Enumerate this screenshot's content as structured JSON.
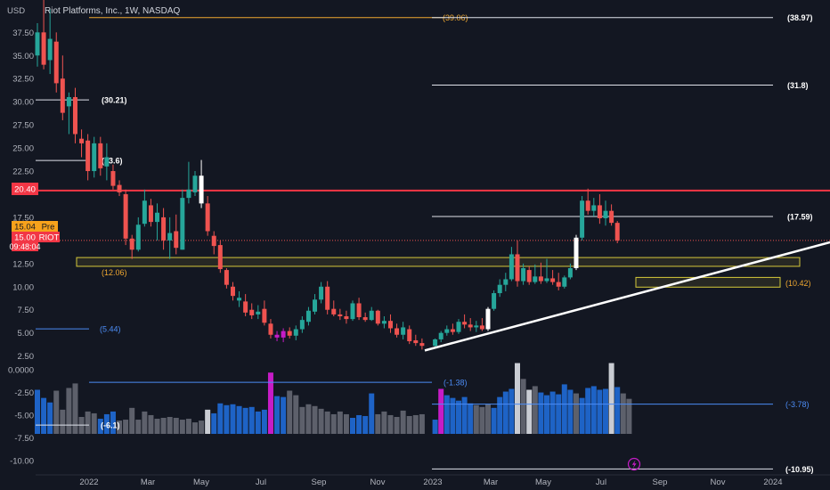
{
  "header": {
    "currency": "USD",
    "title": "Riot Platforms, Inc., 1W, NASDAQ"
  },
  "badges": {
    "resistance_price": "20.40",
    "pre_price": "15.04",
    "pre_label": "Pre",
    "last_price": "15.00",
    "ticker": "RIOT",
    "countdown": "09:48:04"
  },
  "colors": {
    "background": "#131722",
    "up": "#26a69a",
    "down": "#ef5350",
    "resistance": "#f23645",
    "zone_border": "#d6c93a",
    "volume_blue": "#1e63c6",
    "volume_gray": "#5d606b",
    "volume_white": "#c9ccd3",
    "volume_magenta": "#c61cc7",
    "level_blue": "#4c8cf5",
    "level_orange": "#f0a830"
  },
  "chart_data": [
    {
      "type": "candlestick",
      "title": "Riot Platforms, Inc., 1W, NASDAQ",
      "currency": "USD",
      "x_tick_labels": [
        "2022",
        "Mar",
        "May",
        "Jul",
        "Sep",
        "Nov",
        "2023",
        "Mar",
        "May",
        "Jul",
        "Sep",
        "Nov",
        "2024"
      ],
      "y_tick_labels": [
        "37.50",
        "35.00",
        "32.50",
        "30.00",
        "27.50",
        "25.00",
        "22.50",
        "17.50",
        "12.50",
        "10.00",
        "7.50",
        "5.00",
        "2.50"
      ],
      "y_range": [
        1.5,
        40
      ],
      "grid": false,
      "candles": [
        {
          "o": 35.0,
          "h": 38.5,
          "l": 33.8,
          "c": 37.5
        },
        {
          "o": 37.5,
          "h": 41.0,
          "l": 33.5,
          "c": 34.0
        },
        {
          "o": 34.5,
          "h": 40.0,
          "l": 33.0,
          "c": 36.8
        },
        {
          "o": 36.5,
          "h": 37.5,
          "l": 31.0,
          "c": 32.0
        },
        {
          "o": 32.5,
          "h": 35.0,
          "l": 28.0,
          "c": 28.8
        },
        {
          "o": 29.5,
          "h": 31.0,
          "l": 26.5,
          "c": 30.5
        },
        {
          "o": 30.5,
          "h": 31.5,
          "l": 25.5,
          "c": 26.5
        },
        {
          "o": 26.0,
          "h": 27.0,
          "l": 24.0,
          "c": 25.5
        },
        {
          "o": 25.8,
          "h": 26.5,
          "l": 21.5,
          "c": 22.5
        },
        {
          "o": 22.5,
          "h": 26.2,
          "l": 21.8,
          "c": 25.5
        },
        {
          "o": 25.5,
          "h": 26.2,
          "l": 22.0,
          "c": 22.8
        },
        {
          "o": 23.0,
          "h": 25.5,
          "l": 21.5,
          "c": 24.0
        },
        {
          "o": 22.5,
          "h": 23.2,
          "l": 20.5,
          "c": 20.9
        },
        {
          "o": 21.0,
          "h": 21.5,
          "l": 19.8,
          "c": 20.2
        },
        {
          "o": 20.0,
          "h": 20.5,
          "l": 14.5,
          "c": 15.2
        },
        {
          "o": 15.2,
          "h": 15.6,
          "l": 13.0,
          "c": 14.0
        },
        {
          "o": 14.0,
          "h": 17.5,
          "l": 13.8,
          "c": 16.7
        },
        {
          "o": 16.8,
          "h": 20.5,
          "l": 16.5,
          "c": 19.3
        },
        {
          "o": 18.8,
          "h": 19.5,
          "l": 16.5,
          "c": 17.0
        },
        {
          "o": 17.0,
          "h": 19.0,
          "l": 15.0,
          "c": 18.0
        },
        {
          "o": 17.5,
          "h": 18.5,
          "l": 14.0,
          "c": 15.0
        },
        {
          "o": 15.0,
          "h": 17.5,
          "l": 13.0,
          "c": 15.8
        },
        {
          "o": 16.0,
          "h": 17.8,
          "l": 13.5,
          "c": 14.2
        },
        {
          "o": 14.0,
          "h": 20.5,
          "l": 14.0,
          "c": 19.6
        },
        {
          "o": 19.6,
          "h": 23.5,
          "l": 19.0,
          "c": 20.5
        },
        {
          "o": 20.2,
          "h": 22.5,
          "l": 19.8,
          "c": 22.0
        },
        {
          "o": 22.0,
          "h": 23.7,
          "l": 18.5,
          "c": 19.0
        },
        {
          "o": 19.0,
          "h": 19.8,
          "l": 15.5,
          "c": 16.0
        },
        {
          "o": 15.5,
          "h": 16.0,
          "l": 13.5,
          "c": 14.4
        },
        {
          "o": 14.5,
          "h": 15.0,
          "l": 11.5,
          "c": 11.9
        },
        {
          "o": 11.8,
          "h": 12.0,
          "l": 9.8,
          "c": 10.2
        },
        {
          "o": 10.0,
          "h": 10.5,
          "l": 8.5,
          "c": 9.0
        },
        {
          "o": 8.5,
          "h": 9.5,
          "l": 7.8,
          "c": 8.8
        },
        {
          "o": 8.4,
          "h": 9.2,
          "l": 6.8,
          "c": 7.2
        },
        {
          "o": 7.5,
          "h": 8.2,
          "l": 6.5,
          "c": 6.9
        },
        {
          "o": 7.0,
          "h": 8.0,
          "l": 6.5,
          "c": 7.3
        },
        {
          "o": 7.6,
          "h": 8.5,
          "l": 5.8,
          "c": 6.1
        },
        {
          "o": 6.0,
          "h": 6.5,
          "l": 4.4,
          "c": 4.8
        },
        {
          "o": 4.8,
          "h": 5.2,
          "l": 4.1,
          "c": 4.5
        },
        {
          "o": 4.5,
          "h": 5.5,
          "l": 4.0,
          "c": 5.2
        },
        {
          "o": 5.2,
          "h": 5.6,
          "l": 4.4,
          "c": 4.7
        },
        {
          "o": 4.7,
          "h": 5.8,
          "l": 4.2,
          "c": 5.4
        },
        {
          "o": 5.4,
          "h": 6.8,
          "l": 5.0,
          "c": 6.4
        },
        {
          "o": 6.2,
          "h": 7.8,
          "l": 5.8,
          "c": 7.4
        },
        {
          "o": 7.3,
          "h": 9.2,
          "l": 7.0,
          "c": 8.6
        },
        {
          "o": 8.6,
          "h": 10.5,
          "l": 8.2,
          "c": 10.0
        },
        {
          "o": 10.0,
          "h": 10.6,
          "l": 7.0,
          "c": 7.5
        },
        {
          "o": 7.6,
          "h": 8.5,
          "l": 6.8,
          "c": 7.0
        },
        {
          "o": 7.0,
          "h": 7.6,
          "l": 6.4,
          "c": 6.8
        },
        {
          "o": 6.8,
          "h": 7.4,
          "l": 6.0,
          "c": 6.5
        },
        {
          "o": 6.5,
          "h": 8.5,
          "l": 6.3,
          "c": 8.2
        },
        {
          "o": 8.2,
          "h": 8.8,
          "l": 6.4,
          "c": 6.7
        },
        {
          "o": 6.7,
          "h": 7.2,
          "l": 6.2,
          "c": 6.4
        },
        {
          "o": 6.4,
          "h": 7.8,
          "l": 6.3,
          "c": 7.4
        },
        {
          "o": 7.4,
          "h": 7.5,
          "l": 5.8,
          "c": 6.0
        },
        {
          "o": 6.0,
          "h": 6.8,
          "l": 5.5,
          "c": 6.3
        },
        {
          "o": 6.3,
          "h": 7.0,
          "l": 5.0,
          "c": 5.5
        },
        {
          "o": 5.5,
          "h": 6.0,
          "l": 4.5,
          "c": 4.8
        },
        {
          "o": 4.8,
          "h": 6.2,
          "l": 4.3,
          "c": 5.6
        },
        {
          "o": 5.4,
          "h": 5.8,
          "l": 3.8,
          "c": 4.1
        },
        {
          "o": 4.2,
          "h": 4.8,
          "l": 3.6,
          "c": 3.9
        },
        {
          "o": 3.9,
          "h": 4.4,
          "l": 3.2,
          "c": 3.6
        },
        {
          "o": 3.6,
          "h": 4.4,
          "l": 3.3,
          "c": 4.3
        },
        {
          "o": 4.3,
          "h": 5.2,
          "l": 4.0,
          "c": 5.0
        },
        {
          "o": 5.0,
          "h": 5.8,
          "l": 4.7,
          "c": 5.4
        },
        {
          "o": 5.4,
          "h": 6.0,
          "l": 4.8,
          "c": 5.1
        },
        {
          "o": 5.1,
          "h": 6.5,
          "l": 4.9,
          "c": 6.2
        },
        {
          "o": 6.2,
          "h": 7.0,
          "l": 5.5,
          "c": 5.9
        },
        {
          "o": 5.9,
          "h": 6.6,
          "l": 5.2,
          "c": 5.6
        },
        {
          "o": 5.6,
          "h": 6.3,
          "l": 5.1,
          "c": 5.8
        },
        {
          "o": 5.8,
          "h": 6.6,
          "l": 5.2,
          "c": 5.4
        },
        {
          "o": 5.4,
          "h": 7.8,
          "l": 5.2,
          "c": 7.6
        },
        {
          "o": 7.6,
          "h": 9.6,
          "l": 7.4,
          "c": 9.3
        },
        {
          "o": 9.3,
          "h": 10.8,
          "l": 8.9,
          "c": 10.2
        },
        {
          "o": 10.2,
          "h": 11.5,
          "l": 9.5,
          "c": 10.8
        },
        {
          "o": 10.8,
          "h": 14.3,
          "l": 10.6,
          "c": 13.5
        },
        {
          "o": 13.5,
          "h": 15.0,
          "l": 10.0,
          "c": 10.6
        },
        {
          "o": 10.6,
          "h": 12.5,
          "l": 10.2,
          "c": 12.0
        },
        {
          "o": 11.8,
          "h": 12.2,
          "l": 10.2,
          "c": 10.5
        },
        {
          "o": 10.5,
          "h": 12.4,
          "l": 10.3,
          "c": 11.1
        },
        {
          "o": 11.1,
          "h": 12.6,
          "l": 10.3,
          "c": 10.6
        },
        {
          "o": 10.6,
          "h": 13.0,
          "l": 10.4,
          "c": 10.9
        },
        {
          "o": 10.9,
          "h": 11.8,
          "l": 10.2,
          "c": 10.5
        },
        {
          "o": 10.5,
          "h": 11.5,
          "l": 9.6,
          "c": 10.0
        },
        {
          "o": 10.0,
          "h": 11.2,
          "l": 9.8,
          "c": 11.0
        },
        {
          "o": 11.0,
          "h": 12.5,
          "l": 10.8,
          "c": 12.0
        },
        {
          "o": 12.0,
          "h": 15.6,
          "l": 11.8,
          "c": 15.3
        },
        {
          "o": 15.3,
          "h": 19.8,
          "l": 15.0,
          "c": 19.3
        },
        {
          "o": 19.3,
          "h": 20.6,
          "l": 17.8,
          "c": 18.2
        },
        {
          "o": 18.2,
          "h": 19.6,
          "l": 17.6,
          "c": 18.8
        },
        {
          "o": 18.8,
          "h": 20.0,
          "l": 16.8,
          "c": 17.4
        },
        {
          "o": 17.4,
          "h": 19.3,
          "l": 16.6,
          "c": 18.2
        },
        {
          "o": 18.2,
          "h": 18.9,
          "l": 16.6,
          "c": 16.9
        },
        {
          "o": 16.9,
          "h": 17.1,
          "l": 14.7,
          "c": 15.0
        }
      ],
      "levels": [
        {
          "label": "(39.06)",
          "color": "orange"
        },
        {
          "label": "(38.97)",
          "color": "white"
        },
        {
          "label": "(31.8)",
          "color": "white"
        },
        {
          "label": "(30.21)",
          "color": "white"
        },
        {
          "label": "(23.6)",
          "color": "white"
        },
        {
          "label": "(17.59)",
          "color": "white"
        },
        {
          "label": "(12.06)",
          "color": "orange"
        },
        {
          "label": "(10.42)",
          "color": "orange"
        },
        {
          "label": "(5.44)",
          "color": "blue"
        }
      ]
    },
    {
      "type": "bar",
      "y_tick_labels": [
        "0.0000",
        "-2.50",
        "-5.00",
        "-7.50",
        "-10.00"
      ],
      "y_range": [
        -11.5,
        1.0
      ],
      "values": [
        -2.2,
        -3.1,
        -3.6,
        -2.3,
        -4.4,
        -2.0,
        -1.5,
        -5.2,
        -4.6,
        -4.8,
        -5.4,
        -4.9,
        -4.6,
        -5.6,
        -5.5,
        -4.2,
        -5.5,
        -4.6,
        -5.0,
        -5.4,
        -5.3,
        -5.2,
        -5.3,
        -5.5,
        -5.4,
        -5.8,
        -5.6,
        -4.4,
        -4.8,
        -3.7,
        -3.9,
        -3.8,
        -4.0,
        -4.2,
        -4.1,
        -4.6,
        -4.4,
        -0.3,
        -2.9,
        -3.0,
        -2.3,
        -2.8,
        -4.1,
        -3.8,
        -4.0,
        -4.3,
        -4.6,
        -4.9,
        -4.6,
        -4.9,
        -5.3,
        -5.0,
        -5.1,
        -2.6,
        -4.9,
        -4.6,
        -5.0,
        -5.2,
        -4.5,
        -5.1,
        -5.0,
        -4.9,
        -5.5,
        -2.1,
        -2.8,
        -3.1,
        -3.4,
        -3.0,
        -3.7,
        -3.9,
        -4.1,
        -3.8,
        -4.2,
        -3.0,
        -2.4,
        -2.1,
        0.75,
        -1.0,
        -2.2,
        -1.8,
        -2.5,
        -2.8,
        -2.4,
        -2.7,
        -1.6,
        -2.2,
        -2.6,
        -3.1,
        -2.0,
        -1.8,
        -2.2,
        -2.1,
        0.75,
        -1.9,
        -2.6,
        -3.2
      ],
      "levels": [
        {
          "label": "(-1.38)",
          "color": "blue"
        },
        {
          "label": "(-3.78)",
          "color": "blue"
        },
        {
          "label": "(-6.1)",
          "color": "white"
        },
        {
          "label": "(-10.95)",
          "color": "white"
        }
      ]
    }
  ]
}
